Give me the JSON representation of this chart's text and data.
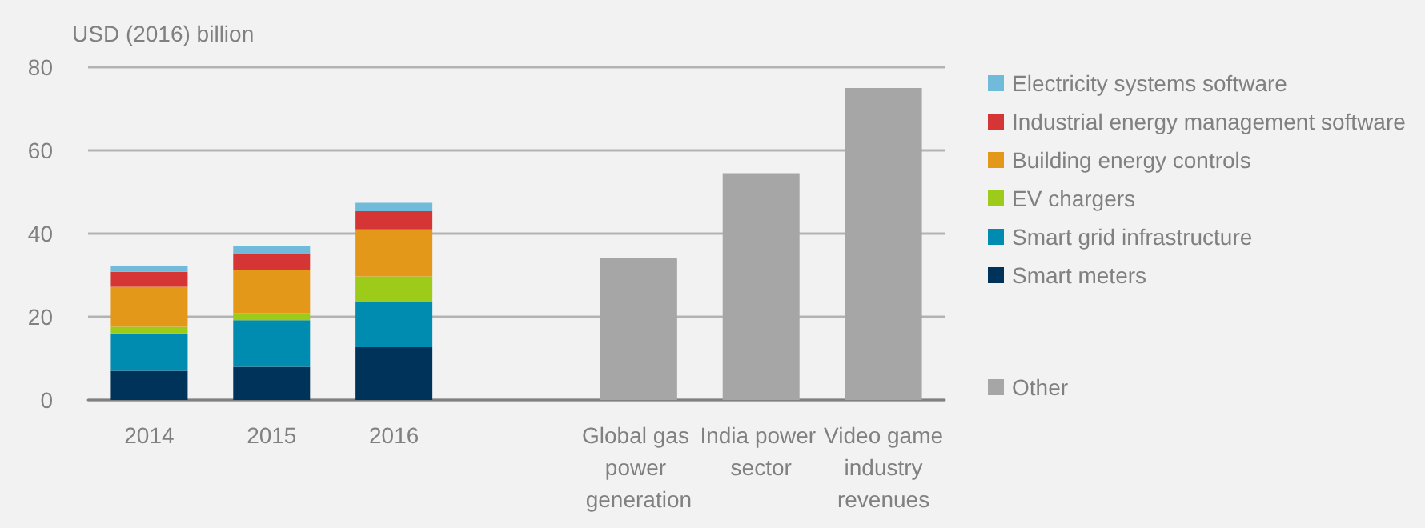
{
  "chart_data": {
    "type": "bar",
    "stacked": true,
    "ylabel": "USD (2016) billion",
    "categories": [
      "2014",
      "2015",
      "2016",
      null,
      "Global gas power generation",
      "India power sector",
      "Video game industry revenues"
    ],
    "series": [
      {
        "name": "Smart meters",
        "color": "#00335a",
        "values": [
          7,
          8,
          12.7,
          null,
          null,
          null,
          null
        ]
      },
      {
        "name": "Smart grid infrastructure",
        "color": "#008bb0",
        "values": [
          9,
          11.2,
          10.8,
          null,
          null,
          null,
          null
        ]
      },
      {
        "name": "EV chargers",
        "color": "#9ccb19",
        "values": [
          1.6,
          1.7,
          6.2,
          null,
          null,
          null,
          null
        ]
      },
      {
        "name": "Building energy controls",
        "color": "#e3981a",
        "values": [
          9.6,
          10.4,
          11.3,
          null,
          null,
          null,
          null
        ]
      },
      {
        "name": "Industrial energy management software",
        "color": "#d63535",
        "values": [
          3.6,
          4,
          4.4,
          null,
          null,
          null,
          null
        ]
      },
      {
        "name": "Electricity systems software",
        "color": "#6fbbd9",
        "values": [
          1.5,
          1.8,
          2,
          null,
          null,
          null,
          null
        ]
      },
      {
        "name": "Other",
        "color": "#a6a6a6",
        "values": [
          null,
          null,
          null,
          null,
          34.1,
          54.5,
          75
        ]
      }
    ],
    "ylim": [
      0,
      80
    ],
    "yticks": [
      0,
      20,
      40,
      60,
      80
    ],
    "grid": "y",
    "legend": "right"
  }
}
